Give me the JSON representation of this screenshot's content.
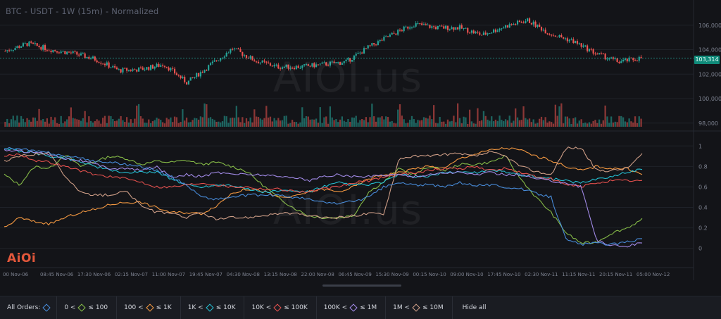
{
  "chart_title": "BTC - USDT - 1W (15m) - Normalized",
  "watermark_text": "AIOI.us",
  "logo_text": "AiOi",
  "current_price_label": "103,314",
  "chart_data": [
    {
      "type": "candlestick",
      "title": "BTC - USDT - 1W (15m)",
      "y_ticks": [
        "106,000",
        "104,000",
        "102,000",
        "100,000",
        "98,000"
      ],
      "ylim": [
        97700,
        107600
      ],
      "current_price": 103314,
      "close_approx": [
        {
          "x": "Nov-06 00:00",
          "y": 103900
        },
        {
          "x": "Nov-06 06:00",
          "y": 104500
        },
        {
          "x": "Nov-06 12:00",
          "y": 104000
        },
        {
          "x": "Nov-06 18:00",
          "y": 103700
        },
        {
          "x": "Nov-07 00:00",
          "y": 103200
        },
        {
          "x": "Nov-07 02:00",
          "y": 102300
        },
        {
          "x": "Nov-07 08:00",
          "y": 102400
        },
        {
          "x": "Nov-07 14:00",
          "y": 102800
        },
        {
          "x": "Nov-07 19:00",
          "y": 101300
        },
        {
          "x": "Nov-08 00:00",
          "y": 102700
        },
        {
          "x": "Nov-08 04:00",
          "y": 104100
        },
        {
          "x": "Nov-08 12:00",
          "y": 103100
        },
        {
          "x": "Nov-08 20:00",
          "y": 102600
        },
        {
          "x": "Nov-09 04:00",
          "y": 102600
        },
        {
          "x": "Nov-09 14:00",
          "y": 102800
        },
        {
          "x": "Nov-09 20:00",
          "y": 103000
        },
        {
          "x": "Nov-10 00:00",
          "y": 104200
        },
        {
          "x": "Nov-10 04:00",
          "y": 105200
        },
        {
          "x": "Nov-10 08:00",
          "y": 106100
        },
        {
          "x": "Nov-10 16:00",
          "y": 105800
        },
        {
          "x": "Nov-10 22:00",
          "y": 105800
        },
        {
          "x": "Nov-11 04:00",
          "y": 105200
        },
        {
          "x": "Nov-11 10:00",
          "y": 105900
        },
        {
          "x": "Nov-11 14:00",
          "y": 106400
        },
        {
          "x": "Nov-11 18:00",
          "y": 105300
        },
        {
          "x": "Nov-11 22:00",
          "y": 104700
        },
        {
          "x": "Nov-12 00:00",
          "y": 103700
        },
        {
          "x": "Nov-12 04:00",
          "y": 103000
        },
        {
          "x": "Nov-12 08:00",
          "y": 103314
        }
      ]
    },
    {
      "type": "line",
      "title": "",
      "y_ticks": [
        "1",
        "0.8",
        "0.6",
        "0.4",
        "0.2",
        "0"
      ],
      "ylim": [
        -0.05,
        1.05
      ],
      "x_ticks": [
        "00 Nov-06",
        "08:45 Nov-06",
        "17:30 Nov-06",
        "02:15 Nov-07",
        "11:00 Nov-07",
        "19:45 Nov-07",
        "04:30 Nov-08",
        "13:15 Nov-08",
        "22:00 Nov-08",
        "06:45 Nov-09",
        "15:30 Nov-09",
        "00:15 Nov-10",
        "09:00 Nov-10",
        "17:45 Nov-10",
        "02:30 Nov-11",
        "11:15 Nov-11",
        "20:15 Nov-11",
        "05:00 Nov-12"
      ],
      "series": [
        {
          "name": "0 < ≤ 100",
          "color": "#8bc34a",
          "values": [
            0.72,
            0.62,
            0.8,
            0.78,
            0.92,
            0.8,
            0.85,
            0.9,
            0.88,
            0.82,
            0.85,
            0.84,
            0.86,
            0.82,
            0.84,
            0.8,
            0.75,
            0.62,
            0.5,
            0.4,
            0.32,
            0.3,
            0.3,
            0.32,
            0.55,
            0.65,
            0.78,
            0.72,
            0.8,
            0.76,
            0.82,
            0.82,
            0.84,
            0.9,
            0.68,
            0.5,
            0.35,
            0.15,
            0.05,
            0.06,
            0.15,
            0.2,
            0.28
          ]
        },
        {
          "name": "100 < ≤ 1K",
          "color": "#ff9f43",
          "values": [
            0.2,
            0.3,
            0.26,
            0.24,
            0.3,
            0.35,
            0.38,
            0.43,
            0.45,
            0.45,
            0.4,
            0.35,
            0.35,
            0.34,
            0.42,
            0.54,
            0.58,
            0.56,
            0.5,
            0.5,
            0.55,
            0.58,
            0.55,
            0.6,
            0.68,
            0.72,
            0.74,
            0.78,
            0.8,
            0.78,
            0.88,
            0.92,
            0.96,
            0.98,
            0.96,
            0.9,
            0.86,
            0.8,
            0.76,
            0.8,
            0.78,
            0.78,
            0.72
          ]
        },
        {
          "name": "1K < ≤ 10K",
          "color": "#26c6da",
          "values": [
            0.98,
            0.95,
            0.93,
            0.9,
            0.88,
            0.85,
            0.8,
            0.76,
            0.74,
            0.74,
            0.75,
            0.68,
            0.62,
            0.6,
            0.62,
            0.62,
            0.58,
            0.55,
            0.56,
            0.56,
            0.55,
            0.6,
            0.64,
            0.62,
            0.62,
            0.65,
            0.72,
            0.7,
            0.7,
            0.74,
            0.75,
            0.74,
            0.76,
            0.75,
            0.72,
            0.7,
            0.68,
            0.66,
            0.64,
            0.68,
            0.7,
            0.74,
            0.78
          ]
        },
        {
          "name": "10K < ≤ 100K",
          "color": "#ef5350",
          "values": [
            0.9,
            0.92,
            0.86,
            0.84,
            0.8,
            0.76,
            0.72,
            0.7,
            0.68,
            0.65,
            0.6,
            0.6,
            0.62,
            0.64,
            0.62,
            0.6,
            0.6,
            0.58,
            0.58,
            0.56,
            0.55,
            0.58,
            0.6,
            0.64,
            0.66,
            0.7,
            0.72,
            0.74,
            0.76,
            0.78,
            0.78,
            0.8,
            0.76,
            0.78,
            0.74,
            0.7,
            0.68,
            0.62,
            0.6,
            0.64,
            0.66,
            0.66,
            0.66
          ]
        },
        {
          "name": "100K < ≤ 1M",
          "color": "#a88ff0",
          "values": [
            0.96,
            0.95,
            0.94,
            0.92,
            0.88,
            0.86,
            0.82,
            0.78,
            0.78,
            0.76,
            0.8,
            0.7,
            0.72,
            0.7,
            0.74,
            0.73,
            0.72,
            0.72,
            0.7,
            0.7,
            0.66,
            0.7,
            0.72,
            0.7,
            0.7,
            0.72,
            0.72,
            0.7,
            0.72,
            0.74,
            0.74,
            0.72,
            0.74,
            0.72,
            0.72,
            0.68,
            0.66,
            0.64,
            0.6,
            0.08,
            0.03,
            0.02,
            0.06
          ]
        },
        {
          "name": "1M < ≤ 10M",
          "color": "#d7a48c",
          "values": [
            0.85,
            0.9,
            0.92,
            0.94,
            0.7,
            0.55,
            0.52,
            0.52,
            0.56,
            0.42,
            0.35,
            0.35,
            0.3,
            0.35,
            0.28,
            0.3,
            0.3,
            0.32,
            0.34,
            0.34,
            0.32,
            0.3,
            0.3,
            0.32,
            0.34,
            0.34,
            0.88,
            0.9,
            0.9,
            0.92,
            0.92,
            0.9,
            0.94,
            0.9,
            0.8,
            0.75,
            0.72,
            0.98,
            0.98,
            0.76,
            0.76,
            0.78,
            0.92
          ]
        },
        {
          "name": "All Orders",
          "color": "#4a90e2",
          "values": [
            0.98,
            0.97,
            0.95,
            0.93,
            0.9,
            0.88,
            0.85,
            0.84,
            0.82,
            0.8,
            0.76,
            0.7,
            0.62,
            0.5,
            0.48,
            0.5,
            0.52,
            0.52,
            0.52,
            0.5,
            0.48,
            0.45,
            0.44,
            0.46,
            0.5,
            0.6,
            0.64,
            0.62,
            0.62,
            0.6,
            0.64,
            0.62,
            0.62,
            0.6,
            0.58,
            0.54,
            0.5,
            0.08,
            0.04,
            0.05,
            0.04,
            0.06,
            0.1
          ]
        }
      ]
    }
  ],
  "legend": {
    "items": [
      {
        "label": "All Orders:",
        "color": "#4a90e2"
      },
      {
        "label": "0 <",
        "color": "#8bc34a",
        "suffix": "≤ 100"
      },
      {
        "label": "100 <",
        "color": "#ff9f43",
        "suffix": "≤ 1K"
      },
      {
        "label": "1K <",
        "color": "#26c6da",
        "suffix": "≤ 10K"
      },
      {
        "label": "10K <",
        "color": "#ef5350",
        "suffix": "≤ 100K"
      },
      {
        "label": "100K <",
        "color": "#a88ff0",
        "suffix": "≤ 1M"
      },
      {
        "label": "1M <",
        "color": "#d7a48c",
        "suffix": "≤ 10M"
      }
    ],
    "hide_all": "Hide all"
  },
  "colors": {
    "up": "#26a69a",
    "down": "#ef5350",
    "grid": "#1f2229",
    "axis_text": "#7d8290"
  }
}
